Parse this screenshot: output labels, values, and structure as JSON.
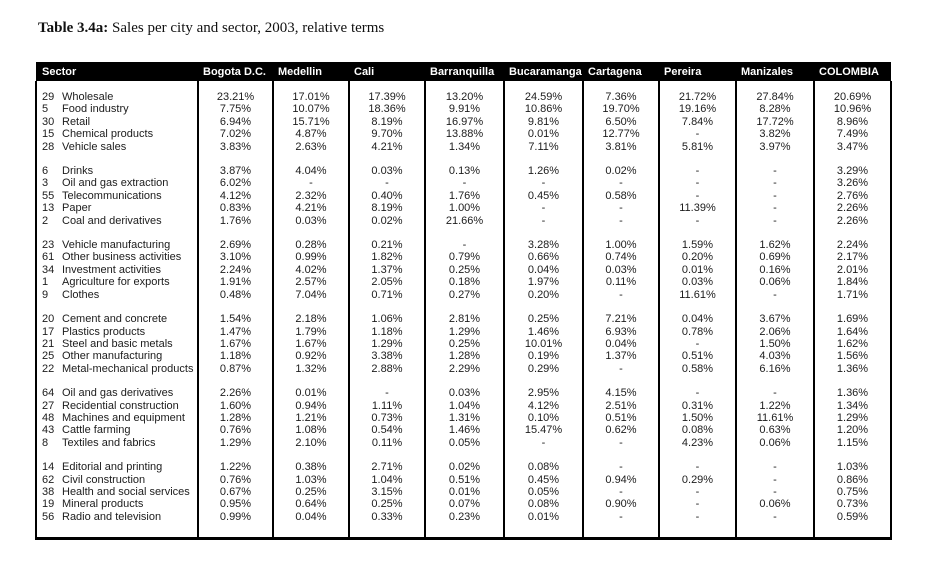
{
  "page": {
    "title_bold": "Table 3.4a:",
    "title_rest": " Sales per city and sector, 2003, relative terms"
  },
  "table": {
    "columns": [
      "Sector",
      "Bogota D.C.",
      "Medellin",
      "Cali",
      "Barranquilla",
      "Bucaramanga",
      "Cartagena",
      "Pereira",
      "Manizales",
      "COLOMBIA"
    ],
    "header_bg": "#000000",
    "header_text_color": "#ffffff",
    "groups": [
      {
        "rows": [
          {
            "code": "29",
            "name": "Wholesale",
            "values": [
              "23.21%",
              "17.01%",
              "17.39%",
              "13.20%",
              "24.59%",
              "7.36%",
              "21.72%",
              "27.84%",
              "20.69%"
            ]
          },
          {
            "code": "5",
            "name": "Food industry",
            "values": [
              "7.75%",
              "10.07%",
              "18.36%",
              "9.91%",
              "10.86%",
              "19.70%",
              "19.16%",
              "8.28%",
              "10.96%"
            ]
          },
          {
            "code": "30",
            "name": "Retail",
            "values": [
              "6.94%",
              "15.71%",
              "8.19%",
              "16.97%",
              "9.81%",
              "6.50%",
              "7.84%",
              "17.72%",
              "8.96%"
            ]
          },
          {
            "code": "15",
            "name": "Chemical products",
            "values": [
              "7.02%",
              "4.87%",
              "9.70%",
              "13.88%",
              "0.01%",
              "12.77%",
              "-",
              "3.82%",
              "7.49%"
            ]
          },
          {
            "code": "28",
            "name": "Vehicle sales",
            "values": [
              "3.83%",
              "2.63%",
              "4.21%",
              "1.34%",
              "7.11%",
              "3.81%",
              "5.81%",
              "3.97%",
              "3.47%"
            ]
          }
        ]
      },
      {
        "rows": [
          {
            "code": "6",
            "name": "Drinks",
            "values": [
              "3.87%",
              "4.04%",
              "0.03%",
              "0.13%",
              "1.26%",
              "0.02%",
              "-",
              "-",
              "3.29%"
            ]
          },
          {
            "code": "3",
            "name": "Oil and gas extraction",
            "values": [
              "6.02%",
              "-",
              "-",
              "-",
              "-",
              "-",
              "-",
              "-",
              "3.26%"
            ]
          },
          {
            "code": "55",
            "name": "Telecommunications",
            "values": [
              "4.12%",
              "2.32%",
              "0.40%",
              "1.76%",
              "0.45%",
              "0.58%",
              "-",
              "-",
              "2.76%"
            ]
          },
          {
            "code": "13",
            "name": "Paper",
            "values": [
              "0.83%",
              "4.21%",
              "8.19%",
              "1.00%",
              "-",
              "-",
              "11.39%",
              "-",
              "2.26%"
            ]
          },
          {
            "code": "2",
            "name": "Coal and derivatives",
            "values": [
              "1.76%",
              "0.03%",
              "0.02%",
              "21.66%",
              "-",
              "-",
              "-",
              "-",
              "2.26%"
            ]
          }
        ]
      },
      {
        "rows": [
          {
            "code": "23",
            "name": "Vehicle manufacturing",
            "values": [
              "2.69%",
              "0.28%",
              "0.21%",
              "-",
              "3.28%",
              "1.00%",
              "1.59%",
              "1.62%",
              "2.24%"
            ]
          },
          {
            "code": "61",
            "name": "Other business activities",
            "values": [
              "3.10%",
              "0.99%",
              "1.82%",
              "0.79%",
              "0.66%",
              "0.74%",
              "0.20%",
              "0.69%",
              "2.17%"
            ]
          },
          {
            "code": "34",
            "name": "Investment activities",
            "values": [
              "2.24%",
              "4.02%",
              "1.37%",
              "0.25%",
              "0.04%",
              "0.03%",
              "0.01%",
              "0.16%",
              "2.01%"
            ]
          },
          {
            "code": "1",
            "name": "Agriculture for exports",
            "values": [
              "1.91%",
              "2.57%",
              "2.05%",
              "0.18%",
              "1.97%",
              "0.11%",
              "0.03%",
              "0.06%",
              "1.84%"
            ]
          },
          {
            "code": "9",
            "name": "Clothes",
            "values": [
              "0.48%",
              "7.04%",
              "0.71%",
              "0.27%",
              "0.20%",
              "-",
              "11.61%",
              "-",
              "1.71%"
            ]
          }
        ]
      },
      {
        "rows": [
          {
            "code": "20",
            "name": "Cement and concrete",
            "values": [
              "1.54%",
              "2.18%",
              "1.06%",
              "2.81%",
              "0.25%",
              "7.21%",
              "0.04%",
              "3.67%",
              "1.69%"
            ]
          },
          {
            "code": "17",
            "name": "Plastics products",
            "values": [
              "1.47%",
              "1.79%",
              "1.18%",
              "1.29%",
              "1.46%",
              "6.93%",
              "0.78%",
              "2.06%",
              "1.64%"
            ]
          },
          {
            "code": "21",
            "name": "Steel and basic metals",
            "values": [
              "1.67%",
              "1.67%",
              "1.29%",
              "0.25%",
              "10.01%",
              "0.04%",
              "-",
              "1.50%",
              "1.62%"
            ]
          },
          {
            "code": "25",
            "name": "Other manufacturing",
            "values": [
              "1.18%",
              "0.92%",
              "3.38%",
              "1.28%",
              "0.19%",
              "1.37%",
              "0.51%",
              "4.03%",
              "1.56%"
            ]
          },
          {
            "code": "22",
            "name": "Metal-mechanical products",
            "values": [
              "0.87%",
              "1.32%",
              "2.88%",
              "2.29%",
              "0.29%",
              "-",
              "0.58%",
              "6.16%",
              "1.36%"
            ]
          }
        ]
      },
      {
        "rows": [
          {
            "code": "64",
            "name": "Oil and gas derivatives",
            "values": [
              "2.26%",
              "0.01%",
              "-",
              "0.03%",
              "2.95%",
              "4.15%",
              "-",
              "-",
              "1.36%"
            ]
          },
          {
            "code": "27",
            "name": "Recidential construction",
            "values": [
              "1.60%",
              "0.94%",
              "1.11%",
              "1.04%",
              "4.12%",
              "2.51%",
              "0.31%",
              "1.22%",
              "1.34%"
            ]
          },
          {
            "code": "48",
            "name": "Machines and equipment",
            "values": [
              "1.28%",
              "1.21%",
              "0.73%",
              "1.31%",
              "0.10%",
              "0.51%",
              "1.50%",
              "11.61%",
              "1.29%"
            ]
          },
          {
            "code": "43",
            "name": "Cattle farming",
            "values": [
              "0.76%",
              "1.08%",
              "0.54%",
              "1.46%",
              "15.47%",
              "0.62%",
              "0.08%",
              "0.63%",
              "1.20%"
            ]
          },
          {
            "code": "8",
            "name": "Textiles and fabrics",
            "values": [
              "1.29%",
              "2.10%",
              "0.11%",
              "0.05%",
              "-",
              "-",
              "4.23%",
              "0.06%",
              "1.15%"
            ]
          }
        ]
      },
      {
        "rows": [
          {
            "code": "14",
            "name": "Editorial and printing",
            "values": [
              "1.22%",
              "0.38%",
              "2.71%",
              "0.02%",
              "0.08%",
              "-",
              "-",
              "-",
              "1.03%"
            ]
          },
          {
            "code": "62",
            "name": "Civil construction",
            "values": [
              "0.76%",
              "1.03%",
              "1.04%",
              "0.51%",
              "0.45%",
              "0.94%",
              "0.29%",
              "-",
              "0.86%"
            ]
          },
          {
            "code": "38",
            "name": "Health and social services",
            "values": [
              "0.67%",
              "0.25%",
              "3.15%",
              "0.01%",
              "0.05%",
              "-",
              "-",
              "-",
              "0.75%"
            ]
          },
          {
            "code": "19",
            "name": "Mineral products",
            "values": [
              "0.95%",
              "0.64%",
              "0.25%",
              "0.07%",
              "0.08%",
              "0.90%",
              "-",
              "0.06%",
              "0.73%"
            ]
          },
          {
            "code": "56",
            "name": "Radio and television",
            "values": [
              "0.99%",
              "0.04%",
              "0.33%",
              "0.23%",
              "0.01%",
              "-",
              "-",
              "-",
              "0.59%"
            ]
          }
        ]
      }
    ]
  }
}
